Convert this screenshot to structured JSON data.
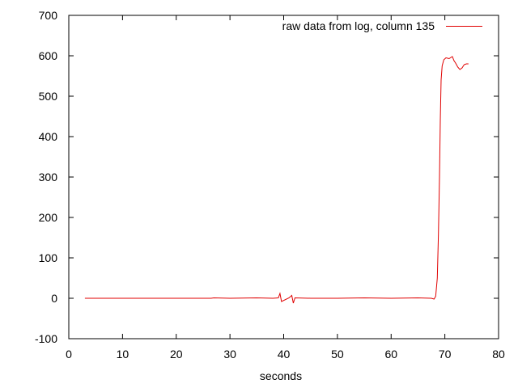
{
  "chart_data": {
    "type": "line",
    "title": "",
    "xlabel": "seconds",
    "ylabel": "",
    "xlim": [
      0,
      80
    ],
    "ylim": [
      -100,
      700
    ],
    "xticks": [
      0,
      10,
      20,
      30,
      40,
      50,
      60,
      70,
      80
    ],
    "yticks": [
      -100,
      0,
      100,
      200,
      300,
      400,
      500,
      600,
      700
    ],
    "grid": false,
    "legend_position": "top-right",
    "series": [
      {
        "name": "raw data from log, column 135",
        "color": "#e00000",
        "x": [
          3.0,
          10.0,
          20.0,
          26.5,
          27.0,
          30.0,
          35.0,
          38.0,
          39.0,
          39.3,
          39.6,
          41.0,
          41.5,
          41.8,
          42.1,
          45.0,
          50.0,
          55.0,
          60.0,
          65.0,
          67.5,
          68.0,
          68.3,
          68.6,
          68.8,
          69.0,
          69.15,
          69.3,
          69.5,
          69.8,
          70.2,
          70.8,
          71.4,
          71.7,
          72.0,
          72.4,
          72.8,
          73.2,
          73.6,
          74.0,
          74.4
        ],
        "y": [
          0,
          0,
          0,
          0,
          1,
          0,
          1,
          0,
          1,
          12,
          -8,
          1,
          7,
          -12,
          1,
          0,
          0,
          1,
          0,
          1,
          0,
          -2,
          5,
          50,
          160,
          300,
          440,
          540,
          575,
          590,
          595,
          593,
          598,
          588,
          582,
          572,
          566,
          570,
          578,
          580,
          580
        ]
      }
    ]
  }
}
